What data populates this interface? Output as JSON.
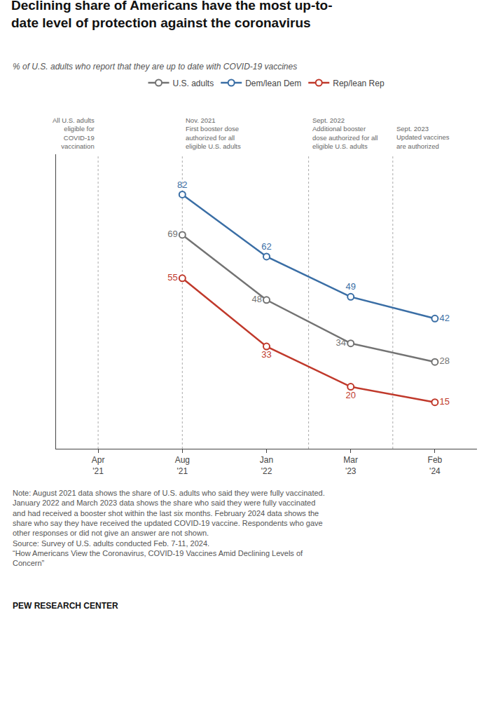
{
  "chart_data": {
    "type": "line",
    "title": "Declining share of Americans have the most up-to-\ndate level of protection against the coronavirus",
    "subtitle": "% of U.S. adults who report that they are up to date with COVID-19 vaccines",
    "categories": [
      "Apr\n'21",
      "Aug\n'21",
      "Jan\n'22",
      "Mar\n'23",
      "Feb\n'24"
    ],
    "series": [
      {
        "name": "U.S. adults",
        "color": "#737373",
        "values": [
          null,
          69,
          48,
          34,
          28
        ]
      },
      {
        "name": "Dem/lean Dem",
        "color": "#3a6ea5",
        "values": [
          null,
          82,
          62,
          49,
          42
        ]
      },
      {
        "name": "Rep/lean Rep",
        "color": "#c0392b",
        "values": [
          null,
          55,
          33,
          20,
          15
        ]
      }
    ],
    "ylim": [
      0,
      95
    ],
    "tick_labels": "x",
    "grid": false,
    "legend": "top",
    "data_labels": true,
    "marker": "circle",
    "annotations": [
      "All U.S. adults\neligible for\nCOVID-19\nvaccination",
      "Nov. 2021\nFirst booster dose\nauthorized for all\neligible U.S. adults",
      "Sept. 2022\nAdditional booster\ndose authorized for all\neligible U.S. adults",
      "Sept. 2023\nUpdated vaccines\nare authorized"
    ],
    "note": [
      "Note: August 2021 data shows the share of U.S. adults who said they were fully vaccinated.",
      "January 2022 and March 2023 data shows the share who said they were fully vaccinated",
      "and had received a booster shot within the last six months. February 2024 data shows the",
      "share who say they have received the updated COVID-19 vaccine. Respondents who gave",
      "other responses or did not give an answer are not shown.",
      "Source: Survey of U.S. adults conducted Feb. 7-11, 2024.",
      "“How Americans View the Coronavirus, COVID-19 Vaccines Amid Declining Levels of",
      "Concern”"
    ],
    "source": "PEW RESEARCH CENTER"
  }
}
